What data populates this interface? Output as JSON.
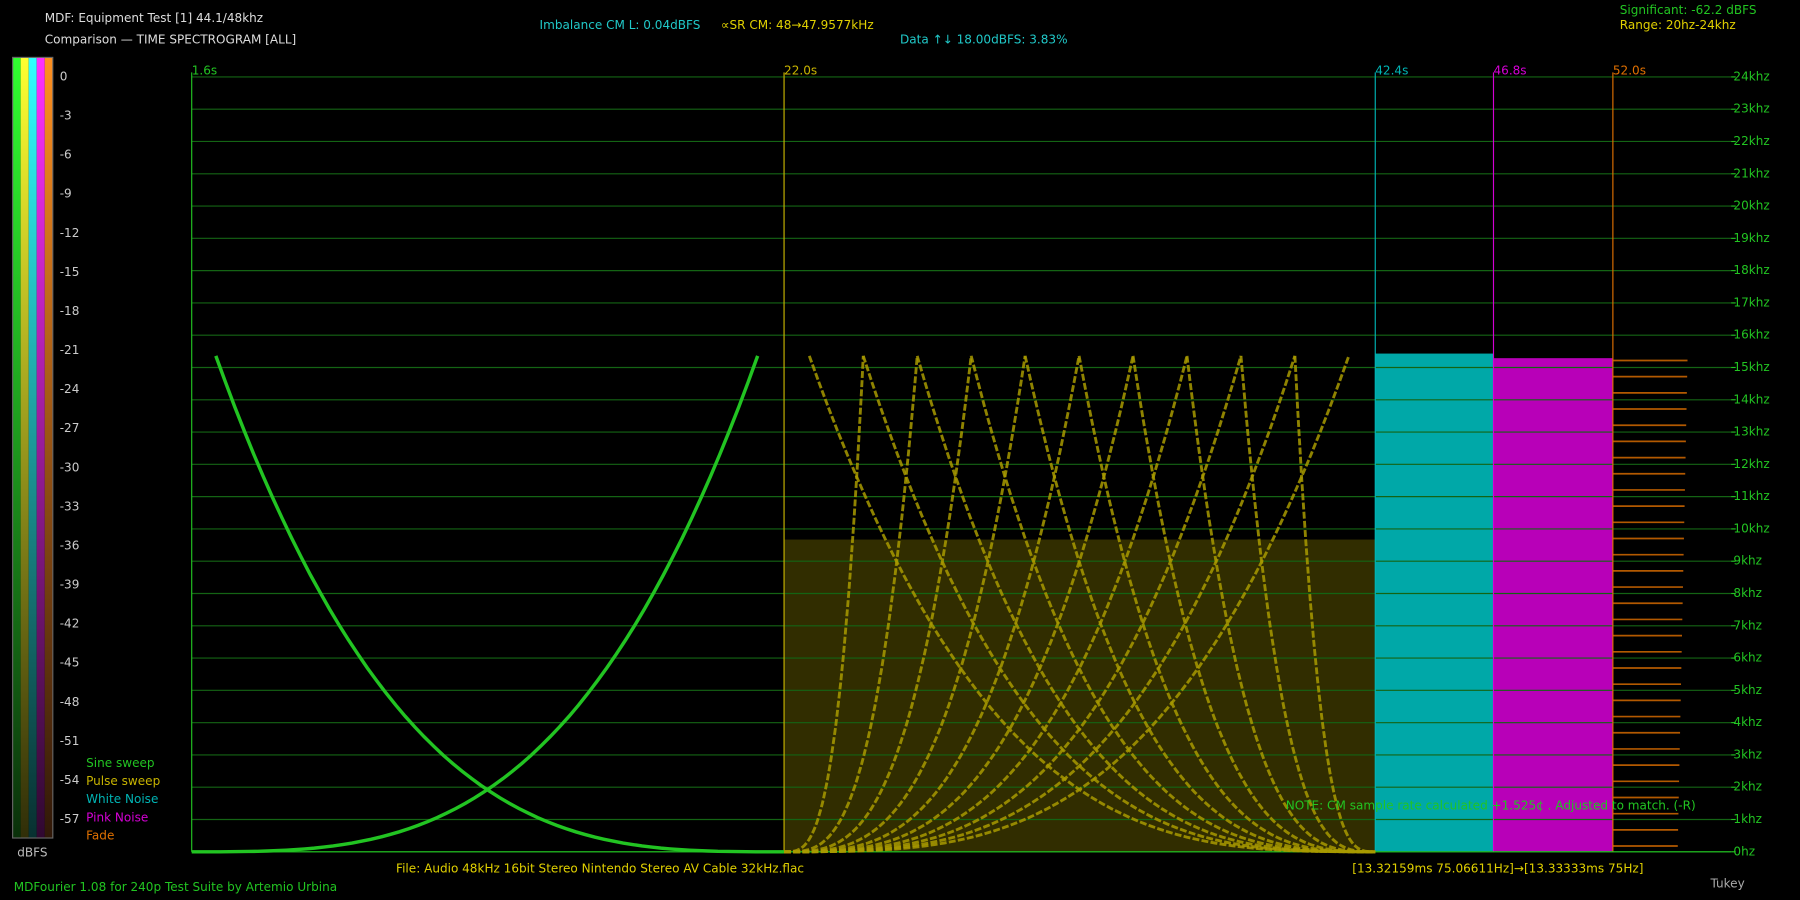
{
  "header": {
    "title": "MDF: Equipment Test [1] 44.1/48khz",
    "subtitle": "Comparison — TIME SPECTROGRAM [ALL]",
    "imbalance": "Imbalance CM L: 0.04dBFS",
    "sample_rate": "∝SR CM: 48→47.9577kHz",
    "data": "Data ↑↓ 18.00dBFS: 3.83%",
    "significant": "Significant: -62.2 dBFS",
    "range": "Range: 20hz-24khz"
  },
  "colorbar": {
    "labels": [
      "0",
      "-3",
      "-6",
      "-9",
      "-12",
      "-15",
      "-18",
      "-21",
      "-24",
      "-27",
      "-30",
      "-33",
      "-36",
      "-39",
      "-42",
      "-45",
      "-48",
      "-51",
      "-54",
      "-57"
    ],
    "unit": "dBFS"
  },
  "legend": [
    {
      "name": "Sine sweep",
      "color": "#22c422"
    },
    {
      "name": "Pulse sweep",
      "color": "#c8b400"
    },
    {
      "name": "White Noise",
      "color": "#00b4b4"
    },
    {
      "name": "Pink Noise",
      "color": "#d400d4"
    },
    {
      "name": "Fade",
      "color": "#e07000"
    }
  ],
  "time_markers": [
    {
      "label": "1.6s",
      "color": "#22c422"
    },
    {
      "label": "22.0s",
      "color": "#c8b400"
    },
    {
      "label": "42.4s",
      "color": "#00b4b4"
    },
    {
      "label": "46.8s",
      "color": "#d400d4"
    },
    {
      "label": "52.0s",
      "color": "#e07000"
    }
  ],
  "frequency_labels": [
    "24khz",
    "23khz",
    "22khz",
    "21khz",
    "20khz",
    "19khz",
    "18khz",
    "17khz",
    "16khz",
    "15khz",
    "14khz",
    "13khz",
    "12khz",
    "11khz",
    "10khz",
    "9khz",
    "8khz",
    "7khz",
    "6khz",
    "5khz",
    "4khz",
    "3khz",
    "2khz",
    "1khz",
    "0hz"
  ],
  "footer": {
    "file": "File: Audio    48kHz 16bit Stereo Nintendo Stereo AV Cable 32kHz.flac",
    "timing": "[13.32159ms 75.06611Hz]→[13.33333ms 75Hz]",
    "note": "NOTE: CM sample rate calculated +1.525¢ . Adjusted to match. (-R)",
    "credit": "MDFourier 1.08 for 240p Test Suite by Artemio Urbina",
    "window": "Tukey"
  }
}
